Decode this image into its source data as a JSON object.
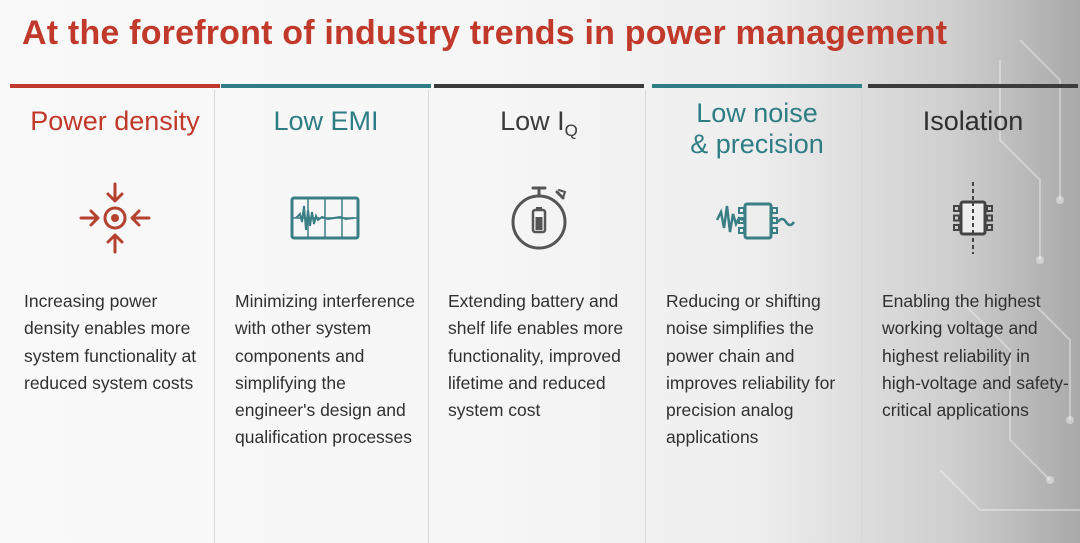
{
  "title": "At the forefront of industry trends in power management",
  "colors": {
    "red": "#c0392b",
    "teal": "#2e7d85",
    "dark": "#3b3b3b",
    "body": "#303030"
  },
  "columns": [
    {
      "heading": "Power density",
      "icon": "converging-arrows-icon",
      "text": "Increasing power density enables more system functionality at reduced system costs"
    },
    {
      "heading": "Low EMI",
      "icon": "oscilloscope-waveform-icon",
      "text": "Minimizing interference with other system components and simplifying the engineer's design and qualification processes"
    },
    {
      "heading_main": "Low I",
      "heading_sub": "Q",
      "icon": "stopwatch-battery-icon",
      "text": "Extending battery and shelf life enables more functionality, improved lifetime and reduced system cost"
    },
    {
      "heading_line1": "Low noise",
      "heading_line2": "& precision",
      "icon": "noise-chip-icon",
      "text": "Reducing or shifting noise simplifies the power chain and improves reliability for precision analog applications"
    },
    {
      "heading": "Isolation",
      "icon": "isolated-chip-icon",
      "text": "Enabling the highest working voltage and highest reliability in high-voltage and safety-critical applications"
    }
  ]
}
